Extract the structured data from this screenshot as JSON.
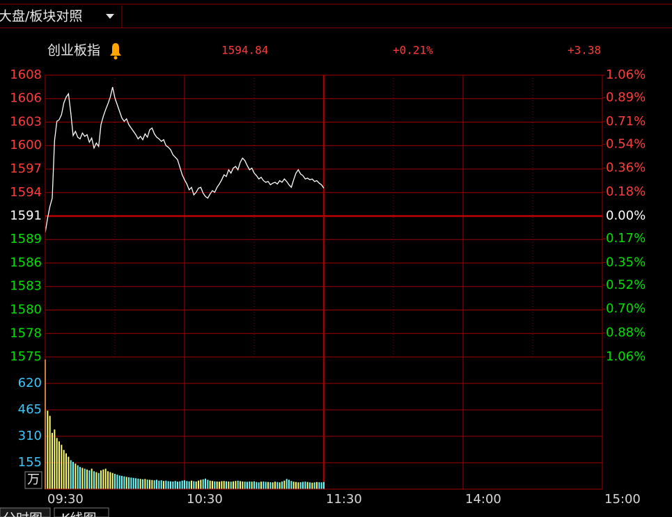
{
  "header": {
    "tab": "大盘/板块对照"
  },
  "quote": {
    "price": "1594.84",
    "change_percent": "+0.21%",
    "change": "+3.38"
  },
  "tabs": [
    "分时图",
    "K线图"
  ],
  "chart_data": [
    {
      "type": "line",
      "xlim": [
        0,
        240
      ],
      "xticks": [
        {
          "value": 0,
          "label": "09:30"
        },
        {
          "value": 60,
          "label": "10:30"
        },
        {
          "value": 120,
          "label": "11:30"
        },
        {
          "value": 180,
          "label": "14:00"
        },
        {
          "value": 240,
          "label": "15:00"
        }
      ],
      "ylim": [
        1574.59,
        1608.33
      ],
      "yticks": [
        {
          "value": 1608.33,
          "label": "1608"
        },
        {
          "value": 1605.52,
          "label": "1606"
        },
        {
          "value": 1602.71,
          "label": "1603"
        },
        {
          "value": 1599.9,
          "label": "1600"
        },
        {
          "value": 1597.08,
          "label": "1597"
        },
        {
          "value": 1594.27,
          "label": "1594"
        },
        {
          "value": 1591.46,
          "label": "1591"
        },
        {
          "value": 1588.65,
          "label": "1589"
        },
        {
          "value": 1585.84,
          "label": "1586"
        },
        {
          "value": 1583.03,
          "label": "1583"
        },
        {
          "value": 1580.21,
          "label": "1580"
        },
        {
          "value": 1577.4,
          "label": "1578"
        },
        {
          "value": 1574.59,
          "label": "1575"
        }
      ],
      "y2lim": [
        -1.06,
        1.06
      ],
      "y2ticks": [
        {
          "value": 1.06,
          "label": "1.06%"
        },
        {
          "value": 0.89,
          "label": "0.89%"
        },
        {
          "value": 0.71,
          "label": "0.71%"
        },
        {
          "value": 0.54,
          "label": "0.54%"
        },
        {
          "value": 0.36,
          "label": "0.36%"
        },
        {
          "value": 0.18,
          "label": "0.18%"
        },
        {
          "value": 0,
          "label": "0.00%"
        },
        {
          "value": -0.17,
          "label": "0.17%"
        },
        {
          "value": -0.35,
          "label": "0.35%"
        },
        {
          "value": -0.52,
          "label": "0.52%"
        },
        {
          "value": -0.7,
          "label": "0.70%"
        },
        {
          "value": -0.88,
          "label": "0.88%"
        },
        {
          "value": -1.06,
          "label": "1.06%"
        }
      ],
      "up_color": "#ff3c3c",
      "down_color": "#00e000",
      "flat_color": "#ffffff",
      "grid_color": "#a00000",
      "series": [
        {
          "name": "创业板指",
          "color": "#ffffff",
          "values": [
            1589.5,
            1591.2,
            1592.6,
            1593.6,
            1600.5,
            1602.8,
            1603.0,
            1603.6,
            1605.0,
            1605.7,
            1606.1,
            1603.8,
            1601.1,
            1601.6,
            1600.9,
            1600.7,
            1601.4,
            1601.0,
            1601.2,
            1600.3,
            1600.8,
            1599.6,
            1600.2,
            1599.8,
            1602.4,
            1603.4,
            1604.2,
            1604.9,
            1605.7,
            1606.9,
            1605.6,
            1604.8,
            1604.0,
            1603.2,
            1602.8,
            1603.1,
            1602.4,
            1602.0,
            1601.6,
            1601.2,
            1600.7,
            1601.0,
            1600.6,
            1601.3,
            1600.9,
            1601.8,
            1602.0,
            1601.3,
            1600.9,
            1600.7,
            1600.4,
            1600.6,
            1599.9,
            1599.7,
            1599.4,
            1598.8,
            1598.5,
            1598.2,
            1597.3,
            1596.4,
            1595.8,
            1595.3,
            1594.6,
            1594.9,
            1594.0,
            1594.3,
            1594.8,
            1594.9,
            1594.2,
            1593.8,
            1593.6,
            1594.1,
            1594.5,
            1594.3,
            1594.9,
            1595.3,
            1595.8,
            1596.4,
            1596.2,
            1597.0,
            1596.6,
            1597.2,
            1597.4,
            1597.0,
            1597.9,
            1598.4,
            1598.1,
            1597.5,
            1597.0,
            1597.2,
            1596.6,
            1596.3,
            1595.9,
            1596.1,
            1595.7,
            1595.5,
            1595.6,
            1595.2,
            1595.4,
            1595.5,
            1595.3,
            1595.7,
            1595.5,
            1595.9,
            1595.6,
            1595.2,
            1594.9,
            1595.8,
            1596.6,
            1597.0,
            1596.5,
            1596.3,
            1595.9,
            1596.0,
            1595.8,
            1595.9,
            1595.6,
            1595.7,
            1595.4,
            1595.2,
            1594.8
          ]
        }
      ]
    },
    {
      "type": "bar",
      "unit": "万",
      "ylim": [
        0,
        775
      ],
      "yticks": [
        155,
        310,
        465,
        620
      ],
      "tick_color": "#3cc8ff",
      "up_color": "#ffff66",
      "down_color": "#66ffff",
      "values": [
        760,
        460,
        430,
        330,
        350,
        300,
        280,
        260,
        230,
        210,
        190,
        170,
        160,
        150,
        140,
        130,
        125,
        120,
        115,
        110,
        120,
        105,
        100,
        95,
        110,
        115,
        120,
        105,
        100,
        95,
        90,
        85,
        80,
        78,
        75,
        72,
        70,
        68,
        66,
        64,
        62,
        60,
        58,
        60,
        56,
        55,
        54,
        52,
        55,
        50,
        52,
        48,
        50,
        47,
        46,
        45,
        48,
        44,
        46,
        50,
        52,
        48,
        46,
        50,
        47,
        45,
        50,
        55,
        58,
        62,
        55,
        50,
        48,
        46,
        45,
        44,
        47,
        48,
        46,
        45,
        44,
        46,
        48,
        50,
        47,
        45,
        44,
        43,
        45,
        44,
        46,
        42,
        40,
        44,
        45,
        43,
        42,
        41,
        40,
        44,
        42,
        40,
        45,
        50,
        60,
        55,
        48,
        44,
        42,
        40,
        41,
        43,
        44,
        42,
        40,
        38,
        40,
        42,
        41,
        40,
        42
      ]
    }
  ]
}
